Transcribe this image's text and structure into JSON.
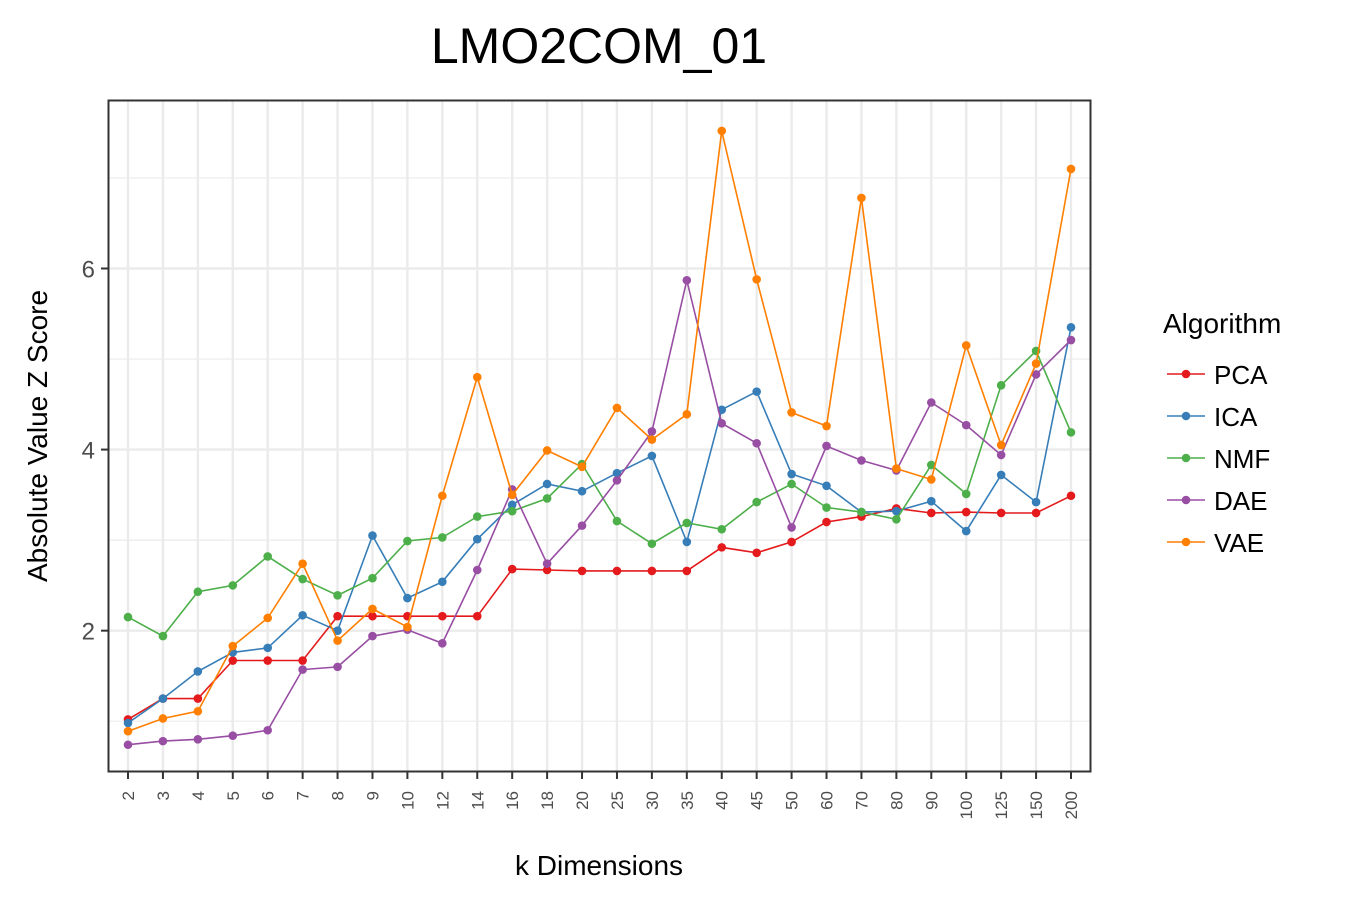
{
  "chart_data": {
    "type": "line",
    "title": "LMO2COM_01",
    "xlabel": "k Dimensions",
    "ylabel": "Absolute Value Z Score",
    "categories": [
      "2",
      "3",
      "4",
      "5",
      "6",
      "7",
      "8",
      "9",
      "10",
      "12",
      "14",
      "16",
      "18",
      "20",
      "25",
      "30",
      "35",
      "40",
      "45",
      "50",
      "60",
      "70",
      "80",
      "90",
      "100",
      "125",
      "150",
      "200"
    ],
    "yticks": [
      2,
      4,
      6
    ],
    "ylim": [
      0.45,
      7.85
    ],
    "grid": true,
    "legend": {
      "title": "Algorithm",
      "position": "right"
    },
    "series": [
      {
        "name": "PCA",
        "color": "#e41a1c",
        "values": [
          1.02,
          1.25,
          1.25,
          1.67,
          1.67,
          1.67,
          2.16,
          2.16,
          2.16,
          2.16,
          2.16,
          2.68,
          2.67,
          2.66,
          2.66,
          2.66,
          2.66,
          2.92,
          2.86,
          2.98,
          3.2,
          3.26,
          3.35,
          3.3,
          3.31,
          3.3,
          3.3,
          3.49
        ]
      },
      {
        "name": "ICA",
        "color": "#377eb8",
        "values": [
          0.98,
          1.25,
          1.55,
          1.76,
          1.81,
          2.17,
          2.0,
          3.05,
          2.36,
          2.54,
          3.01,
          3.39,
          3.62,
          3.54,
          3.74,
          3.93,
          2.98,
          4.44,
          4.64,
          3.73,
          3.6,
          3.31,
          3.32,
          3.43,
          3.1,
          3.72,
          3.42,
          5.35
        ]
      },
      {
        "name": "NMF",
        "color": "#4daf4a",
        "values": [
          2.15,
          1.94,
          2.43,
          2.5,
          2.82,
          2.57,
          2.39,
          2.58,
          2.99,
          3.03,
          3.26,
          3.32,
          3.46,
          3.84,
          3.21,
          2.96,
          3.19,
          3.12,
          3.42,
          3.62,
          3.36,
          3.31,
          3.23,
          3.83,
          3.51,
          4.71,
          5.09,
          4.19
        ]
      },
      {
        "name": "DAE",
        "color": "#984ea3",
        "values": [
          0.74,
          0.78,
          0.8,
          0.84,
          0.9,
          1.57,
          1.6,
          1.94,
          2.01,
          1.86,
          2.67,
          3.56,
          2.74,
          3.16,
          3.66,
          4.2,
          5.87,
          4.29,
          4.07,
          3.14,
          4.04,
          3.88,
          3.77,
          4.52,
          4.27,
          3.94,
          4.83,
          5.21
        ]
      },
      {
        "name": "VAE",
        "color": "#ff7f00",
        "values": [
          0.89,
          1.03,
          1.11,
          1.83,
          2.14,
          2.74,
          1.89,
          2.24,
          2.04,
          3.49,
          4.8,
          3.5,
          3.99,
          3.81,
          4.46,
          4.11,
          4.39,
          7.52,
          5.88,
          4.41,
          4.26,
          6.78,
          3.79,
          3.67,
          5.15,
          4.05,
          4.95,
          7.1
        ]
      }
    ]
  }
}
